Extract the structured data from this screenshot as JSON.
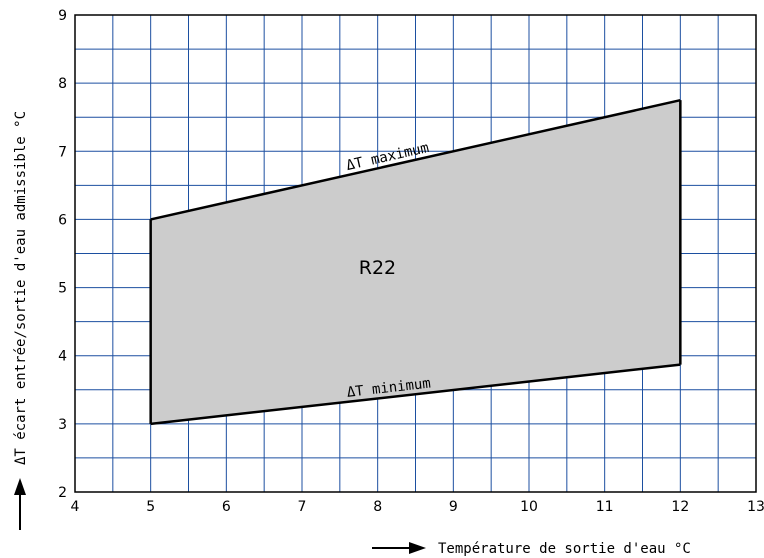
{
  "chart_data": {
    "type": "area",
    "title": "",
    "xlabel": "Température de sortie d'eau °C",
    "ylabel": "ΔT écart entrée/sortie d'eau admissible °C",
    "xlim": [
      4,
      13
    ],
    "ylim": [
      2,
      9
    ],
    "x_ticks": [
      4,
      5,
      6,
      7,
      8,
      9,
      10,
      11,
      12,
      13
    ],
    "y_ticks": [
      2,
      3,
      4,
      5,
      6,
      7,
      8,
      9
    ],
    "minor_grid_step": 0.5,
    "grid": true,
    "fill_color": "#cccccc",
    "grid_color": "#1c4fa0",
    "series": [
      {
        "name": "ΔT maximum",
        "x": [
          5,
          12
        ],
        "y": [
          6.0,
          7.75
        ]
      },
      {
        "name": "ΔT minimum",
        "x": [
          5,
          12
        ],
        "y": [
          3.0,
          3.87
        ]
      }
    ],
    "region_label": "R22"
  }
}
